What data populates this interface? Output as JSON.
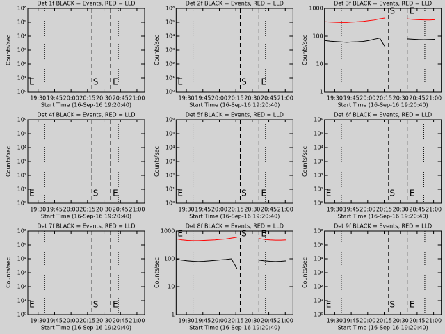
{
  "chart_data": [
    {
      "type": "line",
      "title": "Det 1f BLACK = Events, RED = LLD",
      "xlabel": "Start Time (16-Sep-16 19:20:40)",
      "ylabel": "Counts/sec",
      "xlim": [
        1160.67,
        1267
      ],
      "xticks": [
        {
          "value": 1170,
          "label": "19:30"
        },
        {
          "value": 1185,
          "label": "19:45"
        },
        {
          "value": 1200,
          "label": "20:00"
        },
        {
          "value": 1215,
          "label": "20:15"
        },
        {
          "value": 1230,
          "label": "20:30"
        },
        {
          "value": 1245,
          "label": "20:45"
        },
        {
          "value": 1260,
          "label": "21:00"
        }
      ],
      "ylim": [
        1,
        1000000
      ],
      "yticks": [
        {
          "value": 1,
          "label": "10⁰"
        },
        {
          "value": 10,
          "label": "10¹"
        },
        {
          "value": 100,
          "label": "10²"
        },
        {
          "value": 1000,
          "label": "10³"
        },
        {
          "value": 10000,
          "label": "10⁴"
        },
        {
          "value": 100000,
          "label": "10⁵"
        },
        {
          "value": 1000000,
          "label": "10⁶"
        }
      ],
      "log_y": true,
      "vlines": [
        {
          "x": 1176,
          "style": "dotted"
        },
        {
          "x": 1219,
          "style": "dashed"
        },
        {
          "x": 1236,
          "style": "dashed"
        },
        {
          "x": 1243,
          "style": "dotted"
        }
      ],
      "flags": [
        {
          "x": 1162,
          "label": "E"
        },
        {
          "x": 1220,
          "label": "S"
        },
        {
          "x": 1238,
          "label": "E"
        }
      ],
      "flag_position": "bottom"
    },
    {
      "type": "line",
      "title": "Det 2f BLACK = Events, RED = LLD",
      "xlabel": "Start Time (16-Sep-16 19:20:40)",
      "ylabel": "Counts/sec",
      "xlim": [
        1160.67,
        1267
      ],
      "xticks": [
        {
          "value": 1170,
          "label": "19:30"
        },
        {
          "value": 1185,
          "label": "19:45"
        },
        {
          "value": 1200,
          "label": "20:00"
        },
        {
          "value": 1215,
          "label": "20:15"
        },
        {
          "value": 1230,
          "label": "20:30"
        },
        {
          "value": 1245,
          "label": "20:45"
        },
        {
          "value": 1260,
          "label": "21:00"
        }
      ],
      "ylim": [
        1,
        1000000
      ],
      "yticks": [
        {
          "value": 1,
          "label": "10⁰"
        },
        {
          "value": 10,
          "label": "10¹"
        },
        {
          "value": 100,
          "label": "10²"
        },
        {
          "value": 1000,
          "label": "10³"
        },
        {
          "value": 10000,
          "label": "10⁴"
        },
        {
          "value": 100000,
          "label": "10⁵"
        },
        {
          "value": 1000000,
          "label": "10⁶"
        }
      ],
      "log_y": true,
      "vlines": [
        {
          "x": 1176,
          "style": "dotted"
        },
        {
          "x": 1219,
          "style": "dashed"
        },
        {
          "x": 1236,
          "style": "dashed"
        },
        {
          "x": 1242,
          "style": "dotted"
        }
      ],
      "flags": [
        {
          "x": 1162,
          "label": "E"
        },
        {
          "x": 1220,
          "label": "S"
        },
        {
          "x": 1238,
          "label": "E"
        }
      ],
      "flag_position": "bottom"
    },
    {
      "type": "line",
      "title": "Det 3f BLACK = Events, RED = LLD",
      "xlabel": "Start Time (16-Sep-16 19:20:40)",
      "ylabel": "Counts/sec",
      "xlim": [
        1160.67,
        1267
      ],
      "xticks": [
        {
          "value": 1170,
          "label": "19:30"
        },
        {
          "value": 1185,
          "label": "19:45"
        },
        {
          "value": 1200,
          "label": "20:00"
        },
        {
          "value": 1215,
          "label": "20:15"
        },
        {
          "value": 1230,
          "label": "20:30"
        },
        {
          "value": 1245,
          "label": "20:45"
        },
        {
          "value": 1260,
          "label": "21:00"
        }
      ],
      "ylim": [
        1,
        1000
      ],
      "yticks": [
        1,
        10,
        100,
        1000
      ],
      "log_y": true,
      "vlines": [
        {
          "x": 1176,
          "style": "dotted"
        },
        {
          "x": 1219,
          "style": "dashed"
        },
        {
          "x": 1236,
          "style": "dashed"
        },
        {
          "x": 1252,
          "style": "dotted"
        }
      ],
      "flags": [
        {
          "x": 1220,
          "label": "S"
        },
        {
          "x": 1238,
          "label": "E"
        }
      ],
      "flag_position": "top",
      "x": [
        1161,
        1166,
        1171,
        1176,
        1181,
        1186,
        1191,
        1196,
        1201,
        1206,
        1211,
        1216,
        1221,
        1226,
        1231,
        1236,
        1241,
        1246,
        1251,
        1256,
        1261
      ],
      "series": [
        {
          "color": "#ff0000",
          "values": [
            330,
            320,
            315,
            310,
            310,
            320,
            330,
            340,
            360,
            380,
            420,
            450,
            null,
            null,
            null,
            420,
            400,
            390,
            385,
            380,
            390
          ]
        },
        {
          "color": "#000000",
          "values": [
            70,
            66,
            64,
            62,
            60,
            62,
            63,
            65,
            70,
            78,
            85,
            40,
            null,
            null,
            null,
            80,
            78,
            76,
            75,
            76,
            77
          ]
        }
      ]
    },
    {
      "type": "line",
      "title": "Det 4f BLACK = Events, RED = LLD",
      "xlabel": "Start Time (16-Sep-16 19:20:40)",
      "ylabel": "Counts/sec",
      "xlim": [
        1160.67,
        1267
      ],
      "xticks": [
        {
          "value": 1170,
          "label": "19:30"
        },
        {
          "value": 1185,
          "label": "19:45"
        },
        {
          "value": 1200,
          "label": "20:00"
        },
        {
          "value": 1215,
          "label": "20:15"
        },
        {
          "value": 1230,
          "label": "20:30"
        },
        {
          "value": 1245,
          "label": "20:45"
        },
        {
          "value": 1260,
          "label": "21:00"
        }
      ],
      "ylim": [
        1,
        1000000
      ],
      "yticks": [
        {
          "value": 1,
          "label": "10⁰"
        },
        {
          "value": 10,
          "label": "10¹"
        },
        {
          "value": 100,
          "label": "10²"
        },
        {
          "value": 1000,
          "label": "10³"
        },
        {
          "value": 10000,
          "label": "10⁴"
        },
        {
          "value": 100000,
          "label": "10⁵"
        },
        {
          "value": 1000000,
          "label": "10⁶"
        }
      ],
      "log_y": true,
      "vlines": [
        {
          "x": 1176,
          "style": "dotted"
        },
        {
          "x": 1219,
          "style": "dashed"
        },
        {
          "x": 1236,
          "style": "dashed"
        },
        {
          "x": 1243,
          "style": "dotted"
        }
      ],
      "flags": [
        {
          "x": 1162,
          "label": "E"
        },
        {
          "x": 1220,
          "label": "S"
        },
        {
          "x": 1238,
          "label": "E"
        }
      ],
      "flag_position": "bottom"
    },
    {
      "type": "line",
      "title": "Det 5f BLACK = Events, RED = LLD",
      "xlabel": "Start Time (16-Sep-16 19:20:40)",
      "ylabel": "Counts/sec",
      "xlim": [
        1160.67,
        1267
      ],
      "xticks": [
        {
          "value": 1170,
          "label": "19:30"
        },
        {
          "value": 1185,
          "label": "19:45"
        },
        {
          "value": 1200,
          "label": "20:00"
        },
        {
          "value": 1215,
          "label": "20:15"
        },
        {
          "value": 1230,
          "label": "20:30"
        },
        {
          "value": 1245,
          "label": "20:45"
        },
        {
          "value": 1260,
          "label": "21:00"
        }
      ],
      "ylim": [
        1,
        1000000
      ],
      "yticks": [
        {
          "value": 1,
          "label": "10⁰"
        },
        {
          "value": 10,
          "label": "10¹"
        },
        {
          "value": 100,
          "label": "10²"
        },
        {
          "value": 1000,
          "label": "10³"
        },
        {
          "value": 10000,
          "label": "10⁴"
        },
        {
          "value": 100000,
          "label": "10⁵"
        },
        {
          "value": 1000000,
          "label": "10⁶"
        }
      ],
      "log_y": true,
      "vlines": [
        {
          "x": 1176,
          "style": "dotted"
        },
        {
          "x": 1219,
          "style": "dashed"
        },
        {
          "x": 1236,
          "style": "dashed"
        },
        {
          "x": 1242,
          "style": "dotted"
        }
      ],
      "flags": [
        {
          "x": 1162,
          "label": "E"
        },
        {
          "x": 1220,
          "label": "S"
        },
        {
          "x": 1238,
          "label": "E"
        }
      ],
      "flag_position": "bottom"
    },
    {
      "type": "line",
      "title": "Det 6f BLACK = Events, RED = LLD",
      "xlabel": "Start Time (16-Sep-16 19:20:40)",
      "ylabel": "Counts/sec",
      "xlim": [
        1160.67,
        1267
      ],
      "xticks": [
        {
          "value": 1170,
          "label": "19:30"
        },
        {
          "value": 1185,
          "label": "19:45"
        },
        {
          "value": 1200,
          "label": "20:00"
        },
        {
          "value": 1215,
          "label": "20:15"
        },
        {
          "value": 1230,
          "label": "20:30"
        },
        {
          "value": 1245,
          "label": "20:45"
        },
        {
          "value": 1260,
          "label": "21:00"
        }
      ],
      "ylim": [
        1,
        1000000
      ],
      "yticks": [
        {
          "value": 1,
          "label": "10⁰"
        },
        {
          "value": 10,
          "label": "10¹"
        },
        {
          "value": 100,
          "label": "10²"
        },
        {
          "value": 1000,
          "label": "10³"
        },
        {
          "value": 10000,
          "label": "10⁴"
        },
        {
          "value": 100000,
          "label": "10⁵"
        },
        {
          "value": 1000000,
          "label": "10⁶"
        }
      ],
      "log_y": true,
      "vlines": [
        {
          "x": 1176,
          "style": "dotted"
        },
        {
          "x": 1219,
          "style": "dashed"
        },
        {
          "x": 1236,
          "style": "dashed"
        },
        {
          "x": 1251,
          "style": "dotted"
        }
      ],
      "flags": [
        {
          "x": 1162,
          "label": "E"
        },
        {
          "x": 1220,
          "label": "S"
        },
        {
          "x": 1238,
          "label": "E"
        }
      ],
      "flag_position": "bottom"
    },
    {
      "type": "line",
      "title": "Det 7f BLACK = Events, RED = LLD",
      "xlabel": "Start Time (16-Sep-16 19:20:40)",
      "ylabel": "Counts/sec",
      "xlim": [
        1160.67,
        1267
      ],
      "xticks": [
        {
          "value": 1170,
          "label": "19:30"
        },
        {
          "value": 1185,
          "label": "19:45"
        },
        {
          "value": 1200,
          "label": "20:00"
        },
        {
          "value": 1215,
          "label": "20:15"
        },
        {
          "value": 1230,
          "label": "20:30"
        },
        {
          "value": 1245,
          "label": "20:45"
        },
        {
          "value": 1260,
          "label": "21:00"
        }
      ],
      "ylim": [
        1,
        1000000
      ],
      "yticks": [
        {
          "value": 1,
          "label": "10⁰"
        },
        {
          "value": 10,
          "label": "10¹"
        },
        {
          "value": 100,
          "label": "10²"
        },
        {
          "value": 1000,
          "label": "10³"
        },
        {
          "value": 10000,
          "label": "10⁴"
        },
        {
          "value": 100000,
          "label": "10⁵"
        },
        {
          "value": 1000000,
          "label": "10⁶"
        }
      ],
      "log_y": true,
      "vlines": [
        {
          "x": 1176,
          "style": "dotted"
        },
        {
          "x": 1219,
          "style": "dashed"
        },
        {
          "x": 1236,
          "style": "dashed"
        },
        {
          "x": 1243,
          "style": "dotted"
        }
      ],
      "flags": [
        {
          "x": 1162,
          "label": "E"
        },
        {
          "x": 1220,
          "label": "S"
        },
        {
          "x": 1238,
          "label": "E"
        }
      ],
      "flag_position": "bottom"
    },
    {
      "type": "line",
      "title": "Det 8f BLACK = Events, RED = LLD",
      "xlabel": "Start Time (16-Sep-16 19:20:40)",
      "ylabel": "Counts/sec",
      "xlim": [
        1160.67,
        1267
      ],
      "xticks": [
        {
          "value": 1170,
          "label": "19:30"
        },
        {
          "value": 1185,
          "label": "19:45"
        },
        {
          "value": 1200,
          "label": "20:00"
        },
        {
          "value": 1215,
          "label": "20:15"
        },
        {
          "value": 1230,
          "label": "20:30"
        },
        {
          "value": 1245,
          "label": "20:45"
        },
        {
          "value": 1260,
          "label": "21:00"
        }
      ],
      "ylim": [
        1,
        1000
      ],
      "yticks": [
        1,
        10,
        100,
        1000
      ],
      "log_y": true,
      "vlines": [
        {
          "x": 1176,
          "style": "dotted"
        },
        {
          "x": 1219,
          "style": "dashed"
        },
        {
          "x": 1236,
          "style": "dashed"
        },
        {
          "x": 1242,
          "style": "dotted"
        }
      ],
      "flags": [
        {
          "x": 1162,
          "label": "E"
        },
        {
          "x": 1220,
          "label": "S"
        },
        {
          "x": 1238,
          "label": "E"
        }
      ],
      "flag_position": "top",
      "x": [
        1161,
        1166,
        1171,
        1176,
        1181,
        1186,
        1191,
        1196,
        1201,
        1206,
        1211,
        1216,
        1221,
        1226,
        1231,
        1236,
        1241,
        1246,
        1251,
        1256,
        1261
      ],
      "series": [
        {
          "color": "#ff0000",
          "values": [
            520,
            480,
            460,
            450,
            450,
            460,
            470,
            480,
            500,
            520,
            560,
            600,
            null,
            null,
            null,
            540,
            500,
            480,
            470,
            470,
            480
          ]
        },
        {
          "color": "#000000",
          "values": [
            95,
            90,
            85,
            82,
            80,
            82,
            85,
            88,
            92,
            95,
            100,
            45,
            null,
            null,
            null,
            90,
            85,
            82,
            80,
            82,
            85
          ]
        }
      ]
    },
    {
      "type": "line",
      "title": "Det 9f BLACK = Events, RED = LLD",
      "xlabel": "Start Time (16-Sep-16 19:20:40)",
      "ylabel": "Counts/sec",
      "xlim": [
        1160.67,
        1267
      ],
      "xticks": [
        {
          "value": 1170,
          "label": "19:30"
        },
        {
          "value": 1185,
          "label": "19:45"
        },
        {
          "value": 1200,
          "label": "20:00"
        },
        {
          "value": 1215,
          "label": "20:15"
        },
        {
          "value": 1230,
          "label": "20:30"
        },
        {
          "value": 1245,
          "label": "20:45"
        },
        {
          "value": 1260,
          "label": "21:00"
        }
      ],
      "ylim": [
        1,
        1000000
      ],
      "yticks": [
        {
          "value": 1,
          "label": "10⁰"
        },
        {
          "value": 10,
          "label": "10¹"
        },
        {
          "value": 100,
          "label": "10²"
        },
        {
          "value": 1000,
          "label": "10³"
        },
        {
          "value": 10000,
          "label": "10⁴"
        },
        {
          "value": 100000,
          "label": "10⁵"
        },
        {
          "value": 1000000,
          "label": "10⁶"
        }
      ],
      "log_y": true,
      "vlines": [
        {
          "x": 1176,
          "style": "dotted"
        },
        {
          "x": 1219,
          "style": "dashed"
        },
        {
          "x": 1236,
          "style": "dashed"
        },
        {
          "x": 1252,
          "style": "dotted"
        }
      ],
      "flags": [
        {
          "x": 1162,
          "label": "E"
        },
        {
          "x": 1220,
          "label": "S"
        },
        {
          "x": 1238,
          "label": "E"
        }
      ],
      "flag_position": "bottom"
    }
  ]
}
